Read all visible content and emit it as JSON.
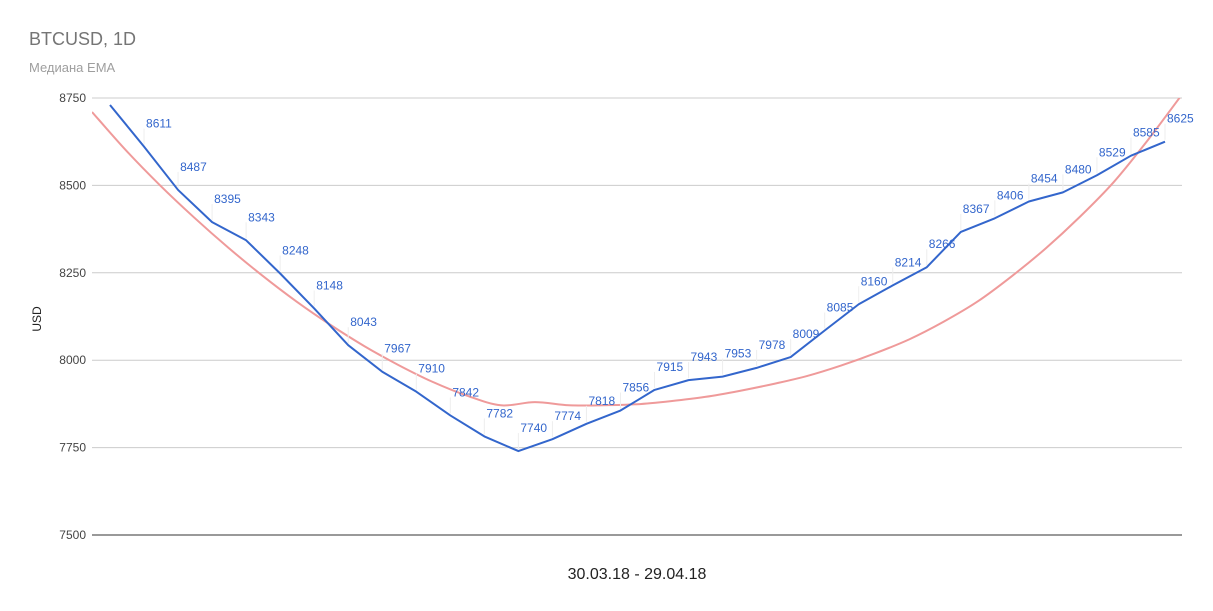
{
  "chart_data": {
    "type": "line",
    "title": "BTCUSD, 1D",
    "subtitle": "Медиана EMA",
    "xlabel": "30.03.18 - 29.04.18",
    "ylabel": "USD",
    "ylim": [
      7500,
      8750
    ],
    "yticks": [
      "8750",
      "8500",
      "8250",
      "8000",
      "7750",
      "7500"
    ],
    "grid": true,
    "series": [
      {
        "color": "#3366cc",
        "values": [
          8730,
          8611,
          8487,
          8395,
          8343,
          8248,
          8148,
          8043,
          7967,
          7910,
          7842,
          7782,
          7740,
          7774,
          7818,
          7856,
          7915,
          7943,
          7953,
          7978,
          8009,
          8085,
          8160,
          8214,
          8266,
          8367,
          8406,
          8454,
          8480,
          8529,
          8585,
          8625
        ],
        "labels": [
          "",
          "8611",
          "8487",
          "8395",
          "8343",
          "8248",
          "8148",
          "8043",
          "7967",
          "7910",
          "7842",
          "7782",
          "7740",
          "7774",
          "7818",
          "7856",
          "7915",
          "7943",
          "7953",
          "7978",
          "8009",
          "8085",
          "8160",
          "8214",
          "8266",
          "8367",
          "8406",
          "8454",
          "8480",
          "8529",
          "8585",
          "8625"
        ]
      },
      {
        "color": "#ef9a9a",
        "values": [
          8710,
          8600,
          8500,
          8408,
          8322,
          8242,
          8168,
          8101,
          8040,
          7986,
          7938,
          7899,
          7871,
          7880,
          7871,
          7871,
          7874,
          7883,
          7895,
          7912,
          7932,
          7955,
          7985,
          8020,
          8060,
          8110,
          8168,
          8240,
          8320,
          8410,
          8510,
          8630,
          8760
        ]
      }
    ]
  }
}
